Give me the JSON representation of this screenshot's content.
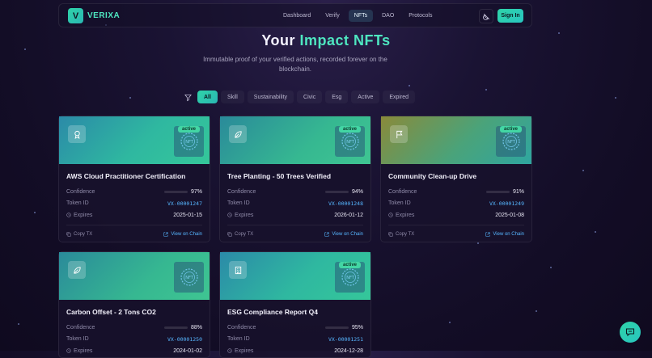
{
  "brand": {
    "mark": "V",
    "name": "VERIXA"
  },
  "nav": {
    "links": [
      "Dashboard",
      "Verify",
      "NFTs",
      "DAO",
      "Protocols"
    ],
    "active": "NFTs",
    "signin_label": "Sign In"
  },
  "hero": {
    "title_prefix": "Your",
    "title_accent": "Impact NFTs",
    "subtitle": "Immutable proof of your verified actions, recorded forever on the blockchain."
  },
  "filters": {
    "chips": [
      "All",
      "Skill",
      "Sustainability",
      "Civic",
      "Esg",
      "Active",
      "Expired"
    ],
    "active": "All"
  },
  "card_labels": {
    "confidence": "Confidence",
    "token_id": "Token ID",
    "expires": "Expires",
    "copy_tx": "Copy TX",
    "view_on_chain": "View on Chain",
    "seal_text": "NFT"
  },
  "cards": [
    {
      "title": "AWS Cloud Practitioner Certification",
      "status": "active",
      "confidence_pct": "97%",
      "confidence": 0.97,
      "token_id": "VX-00001247",
      "expires": "2025-01-15",
      "icon": "award-icon"
    },
    {
      "title": "Tree Planting - 50 Trees Verified",
      "status": "active",
      "confidence_pct": "94%",
      "confidence": 0.94,
      "token_id": "VX-00001248",
      "expires": "2026-01-12",
      "icon": "leaf-icon"
    },
    {
      "title": "Community Clean-up Drive",
      "status": "active",
      "confidence_pct": "91%",
      "confidence": 0.91,
      "token_id": "VX-00001249",
      "expires": "2025-01-08",
      "icon": "flag-icon"
    },
    {
      "title": "Carbon Offset - 2 Tons CO2",
      "status": "",
      "confidence_pct": "88%",
      "confidence": 0.88,
      "token_id": "VX-00001250",
      "expires": "2024-01-02",
      "icon": "leaf-icon"
    },
    {
      "title": "ESG Compliance Report Q4",
      "status": "active",
      "confidence_pct": "95%",
      "confidence": 0.95,
      "token_id": "VX-00001251",
      "expires": "2024-12-28",
      "icon": "building-icon"
    }
  ],
  "colors": {
    "accent": "#4ee6c0",
    "token": "#56b6ff",
    "badge": "#43d6a4"
  }
}
